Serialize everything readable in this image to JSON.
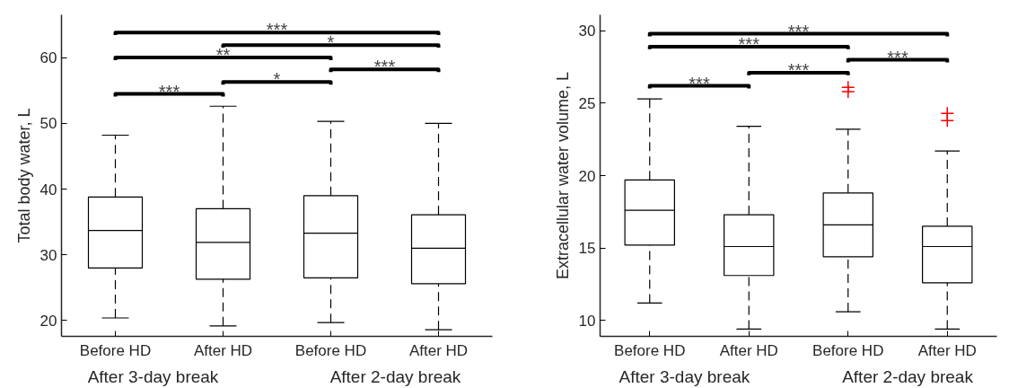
{
  "chart_data": [
    {
      "type": "box",
      "ylabel": "Total body water, L",
      "categories": [
        "Before HD",
        "After HD",
        "Before HD",
        "After HD"
      ],
      "ylim": [
        17.6,
        66.5
      ],
      "yticks": [
        20,
        30,
        40,
        50,
        60
      ],
      "boxes": [
        {
          "low": 20.4,
          "q1": 28.0,
          "median": 33.7,
          "q3": 38.8,
          "high": 48.2
        },
        {
          "low": 19.2,
          "q1": 26.3,
          "median": 31.9,
          "q3": 37.0,
          "high": 52.6
        },
        {
          "low": 19.7,
          "q1": 26.5,
          "median": 33.3,
          "q3": 39.0,
          "high": 50.3
        },
        {
          "low": 18.6,
          "q1": 25.6,
          "median": 31.0,
          "q3": 36.1,
          "high": 50.0
        }
      ],
      "annotations": [
        "***",
        "*",
        "***",
        "**",
        "*",
        "***",
        "After 3-day break",
        "After 2-day break"
      ]
    },
    {
      "type": "box",
      "ylabel": "Extracellular water volume, L",
      "categories": [
        "Before HD",
        "After HD",
        "Before HD",
        "After HD"
      ],
      "ylim": [
        8.9,
        31.1
      ],
      "yticks": [
        10,
        15,
        20,
        25,
        30
      ],
      "boxes": [
        {
          "low": 11.2,
          "q1": 15.2,
          "median": 17.6,
          "q3": 19.7,
          "high": 25.3
        },
        {
          "low": 9.4,
          "q1": 13.1,
          "median": 15.1,
          "q3": 17.3,
          "high": 23.4
        },
        {
          "low": 10.6,
          "q1": 14.4,
          "median": 16.6,
          "q3": 18.8,
          "high": 23.2,
          "outliers": [
            25.8,
            26.1
          ]
        },
        {
          "low": 9.4,
          "q1": 12.6,
          "median": 15.1,
          "q3": 16.5,
          "high": 21.7,
          "outliers": [
            23.8,
            24.3
          ]
        }
      ],
      "annotations": [
        "***",
        "***",
        "***",
        "***",
        "***",
        "After 3-day break",
        "After 2-day break"
      ]
    }
  ]
}
